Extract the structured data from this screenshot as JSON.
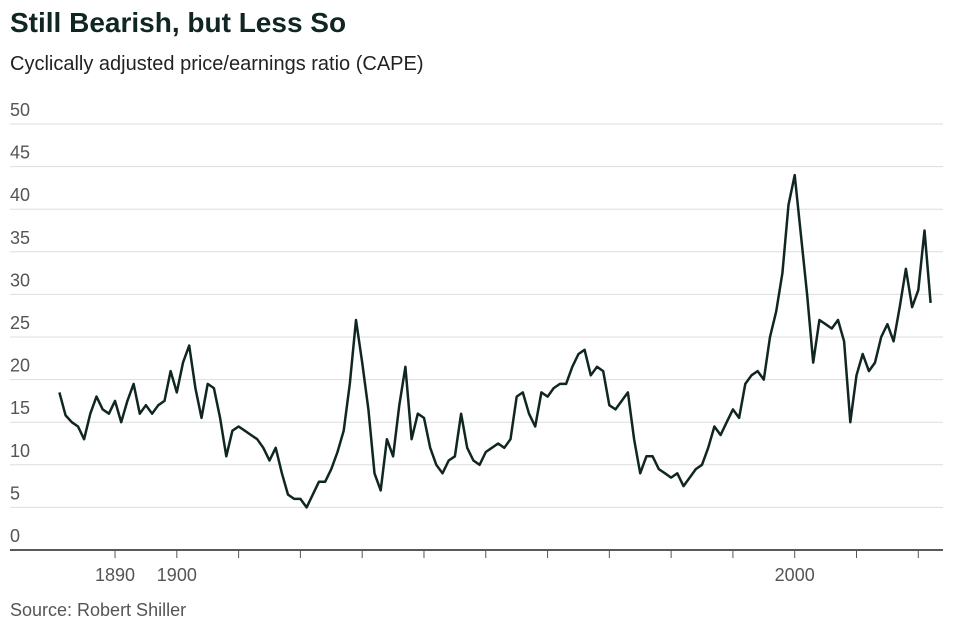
{
  "chart_data": {
    "type": "line",
    "title": "Still Bearish, but Less So",
    "subtitle": "Cyclically adjusted price/earnings ratio (CAPE)",
    "source": "Source: Robert Shiller",
    "x": [
      1881,
      1882,
      1883,
      1884,
      1885,
      1886,
      1887,
      1888,
      1889,
      1890,
      1891,
      1892,
      1893,
      1894,
      1895,
      1896,
      1897,
      1898,
      1899,
      1900,
      1901,
      1902,
      1903,
      1904,
      1905,
      1906,
      1907,
      1908,
      1909,
      1910,
      1911,
      1912,
      1913,
      1914,
      1915,
      1916,
      1917,
      1918,
      1919,
      1920,
      1921,
      1922,
      1923,
      1924,
      1925,
      1926,
      1927,
      1928,
      1929,
      1930,
      1931,
      1932,
      1933,
      1934,
      1935,
      1936,
      1937,
      1938,
      1939,
      1940,
      1941,
      1942,
      1943,
      1944,
      1945,
      1946,
      1947,
      1948,
      1949,
      1950,
      1951,
      1952,
      1953,
      1954,
      1955,
      1956,
      1957,
      1958,
      1959,
      1960,
      1961,
      1962,
      1963,
      1964,
      1965,
      1966,
      1967,
      1968,
      1969,
      1970,
      1971,
      1972,
      1973,
      1974,
      1975,
      1976,
      1977,
      1978,
      1979,
      1980,
      1981,
      1982,
      1983,
      1984,
      1985,
      1986,
      1987,
      1988,
      1989,
      1990,
      1991,
      1992,
      1993,
      1994,
      1995,
      1996,
      1997,
      1998,
      1999,
      2000,
      2001,
      2002,
      2003,
      2004,
      2005,
      2006,
      2007,
      2008,
      2009,
      2010,
      2011,
      2012,
      2013,
      2014,
      2015,
      2016,
      2017,
      2018,
      2019,
      2020,
      2021,
      2022
    ],
    "series": [
      {
        "name": "CAPE",
        "color": "#0f2622",
        "values": [
          18.5,
          15.8,
          15.0,
          14.5,
          13.0,
          16.0,
          18.0,
          16.5,
          16.0,
          17.5,
          15.0,
          17.5,
          19.5,
          16.0,
          17.0,
          16.0,
          17.0,
          17.5,
          21.0,
          18.5,
          22.0,
          24.0,
          19.0,
          15.5,
          19.5,
          19.0,
          15.5,
          11.0,
          14.0,
          14.5,
          14.0,
          13.5,
          13.0,
          12.0,
          10.5,
          12.0,
          9.0,
          6.5,
          6.0,
          6.0,
          5.0,
          6.5,
          8.0,
          8.0,
          9.5,
          11.5,
          14.0,
          19.5,
          27.0,
          22.0,
          16.5,
          9.0,
          7.0,
          13.0,
          11.0,
          17.0,
          21.5,
          13.0,
          16.0,
          15.5,
          12.0,
          10.0,
          9.0,
          10.5,
          11.0,
          16.0,
          12.0,
          10.5,
          10.0,
          11.5,
          12.0,
          12.5,
          12.0,
          13.0,
          18.0,
          18.5,
          16.0,
          14.5,
          18.5,
          18.0,
          19.0,
          19.5,
          19.5,
          21.5,
          23.0,
          23.5,
          20.5,
          21.5,
          21.0,
          17.0,
          16.5,
          17.5,
          18.5,
          13.0,
          9.0,
          11.0,
          11.0,
          9.5,
          9.0,
          8.5,
          9.0,
          7.5,
          8.5,
          9.5,
          10.0,
          12.0,
          14.5,
          13.5,
          15.0,
          16.5,
          15.5,
          19.5,
          20.5,
          21.0,
          20.0,
          25.0,
          28.0,
          32.5,
          40.5,
          44.0,
          37.0,
          30.0,
          22.0,
          27.0,
          26.5,
          26.0,
          27.0,
          24.5,
          15.0,
          20.5,
          23.0,
          21.0,
          22.0,
          25.0,
          26.5,
          24.5,
          28.5,
          33.0,
          28.5,
          30.5,
          37.5,
          29.0
        ]
      }
    ],
    "xlim": [
      1873,
      2024
    ],
    "xticks": [
      1890,
      1900,
      {
        "value": 1910,
        "label": null
      },
      {
        "value": 1920,
        "label": null
      },
      {
        "value": 1930,
        "label": null
      },
      {
        "value": 1940,
        "label": null
      },
      {
        "value": 1950,
        "label": null
      },
      {
        "value": 1960,
        "label": null
      },
      {
        "value": 1970,
        "label": null
      },
      {
        "value": 1980,
        "label": null
      },
      {
        "value": 1990,
        "label": null
      },
      2000,
      {
        "value": 2010,
        "label": null
      },
      {
        "value": 2020,
        "label": null
      }
    ],
    "ylim": [
      0,
      50
    ],
    "yticks": [
      0,
      5,
      10,
      15,
      20,
      25,
      30,
      35,
      40,
      45,
      50
    ],
    "grid": true
  }
}
